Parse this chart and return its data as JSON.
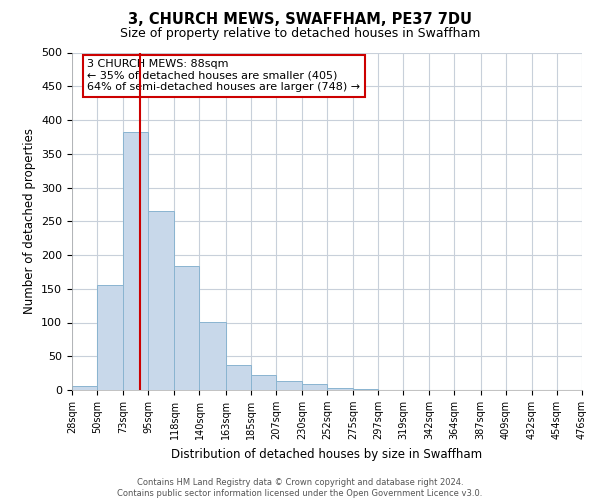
{
  "title": "3, CHURCH MEWS, SWAFFHAM, PE37 7DU",
  "subtitle": "Size of property relative to detached houses in Swaffham",
  "xlabel": "Distribution of detached houses by size in Swaffham",
  "ylabel": "Number of detached properties",
  "bar_color": "#c8d8ea",
  "bar_edge_color": "#8ab4d0",
  "bin_edges": [
    28,
    50,
    73,
    95,
    118,
    140,
    163,
    185,
    207,
    230,
    252,
    275,
    297,
    319,
    342,
    364,
    387,
    409,
    432,
    454,
    476
  ],
  "bar_heights": [
    6,
    155,
    382,
    265,
    183,
    101,
    37,
    22,
    14,
    9,
    3,
    1,
    0,
    0,
    0,
    0,
    0,
    0,
    0,
    0
  ],
  "tick_labels": [
    "28sqm",
    "50sqm",
    "73sqm",
    "95sqm",
    "118sqm",
    "140sqm",
    "163sqm",
    "185sqm",
    "207sqm",
    "230sqm",
    "252sqm",
    "275sqm",
    "297sqm",
    "319sqm",
    "342sqm",
    "364sqm",
    "387sqm",
    "409sqm",
    "432sqm",
    "454sqm",
    "476sqm"
  ],
  "vline_x": 88,
  "ylim": [
    0,
    500
  ],
  "xlim": [
    28,
    476
  ],
  "yticks": [
    0,
    50,
    100,
    150,
    200,
    250,
    300,
    350,
    400,
    450,
    500
  ],
  "annotation_line1": "3 CHURCH MEWS: 88sqm",
  "annotation_line2": "← 35% of detached houses are smaller (405)",
  "annotation_line3": "64% of semi-detached houses are larger (748) →",
  "vline_color": "#cc0000",
  "annotation_box_facecolor": "#ffffff",
  "annotation_border_color": "#cc0000",
  "background_color": "#ffffff",
  "grid_color": "#c8d0da",
  "footnote1": "Contains HM Land Registry data © Crown copyright and database right 2024.",
  "footnote2": "Contains public sector information licensed under the Open Government Licence v3.0."
}
